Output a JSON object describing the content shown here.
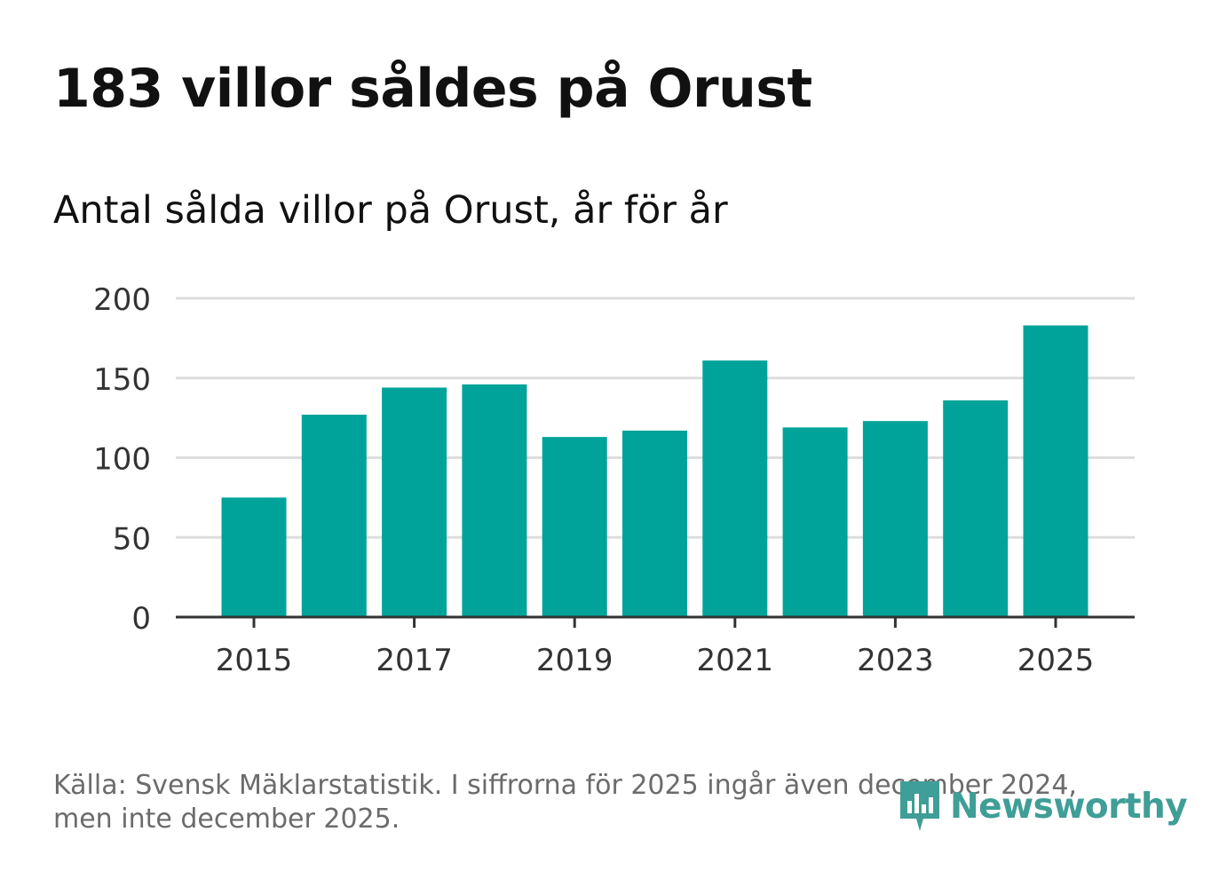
{
  "header": {
    "title": "183 villor såldes på Orust",
    "subtitle": "Antal sålda villor på Orust, år för år"
  },
  "chart_data": {
    "type": "bar",
    "title": "183 villor såldes på Orust",
    "subtitle": "Antal sålda villor på Orust, år för år",
    "categories": [
      "2015",
      "2016",
      "2017",
      "2018",
      "2019",
      "2020",
      "2021",
      "2022",
      "2023",
      "2024",
      "2025"
    ],
    "values": [
      75,
      127,
      144,
      146,
      113,
      117,
      161,
      119,
      123,
      136,
      183
    ],
    "x_tick_labels": [
      "2015",
      "2017",
      "2019",
      "2021",
      "2023",
      "2025"
    ],
    "y_ticks": [
      0,
      50,
      100,
      150,
      200
    ],
    "ylim": [
      0,
      200
    ],
    "xlabel": "",
    "ylabel": "",
    "grid": true,
    "bar_color": "#00a39a"
  },
  "footer": {
    "source_line1": "Källa: Svensk Mäklarstatistik. I siffrorna för 2025 ingår även december 2024,",
    "source_line2": "men inte december 2025."
  },
  "brand": {
    "name": "Newsworthy",
    "icon": "newsworthy-logo-icon",
    "color": "#3f9e97"
  }
}
